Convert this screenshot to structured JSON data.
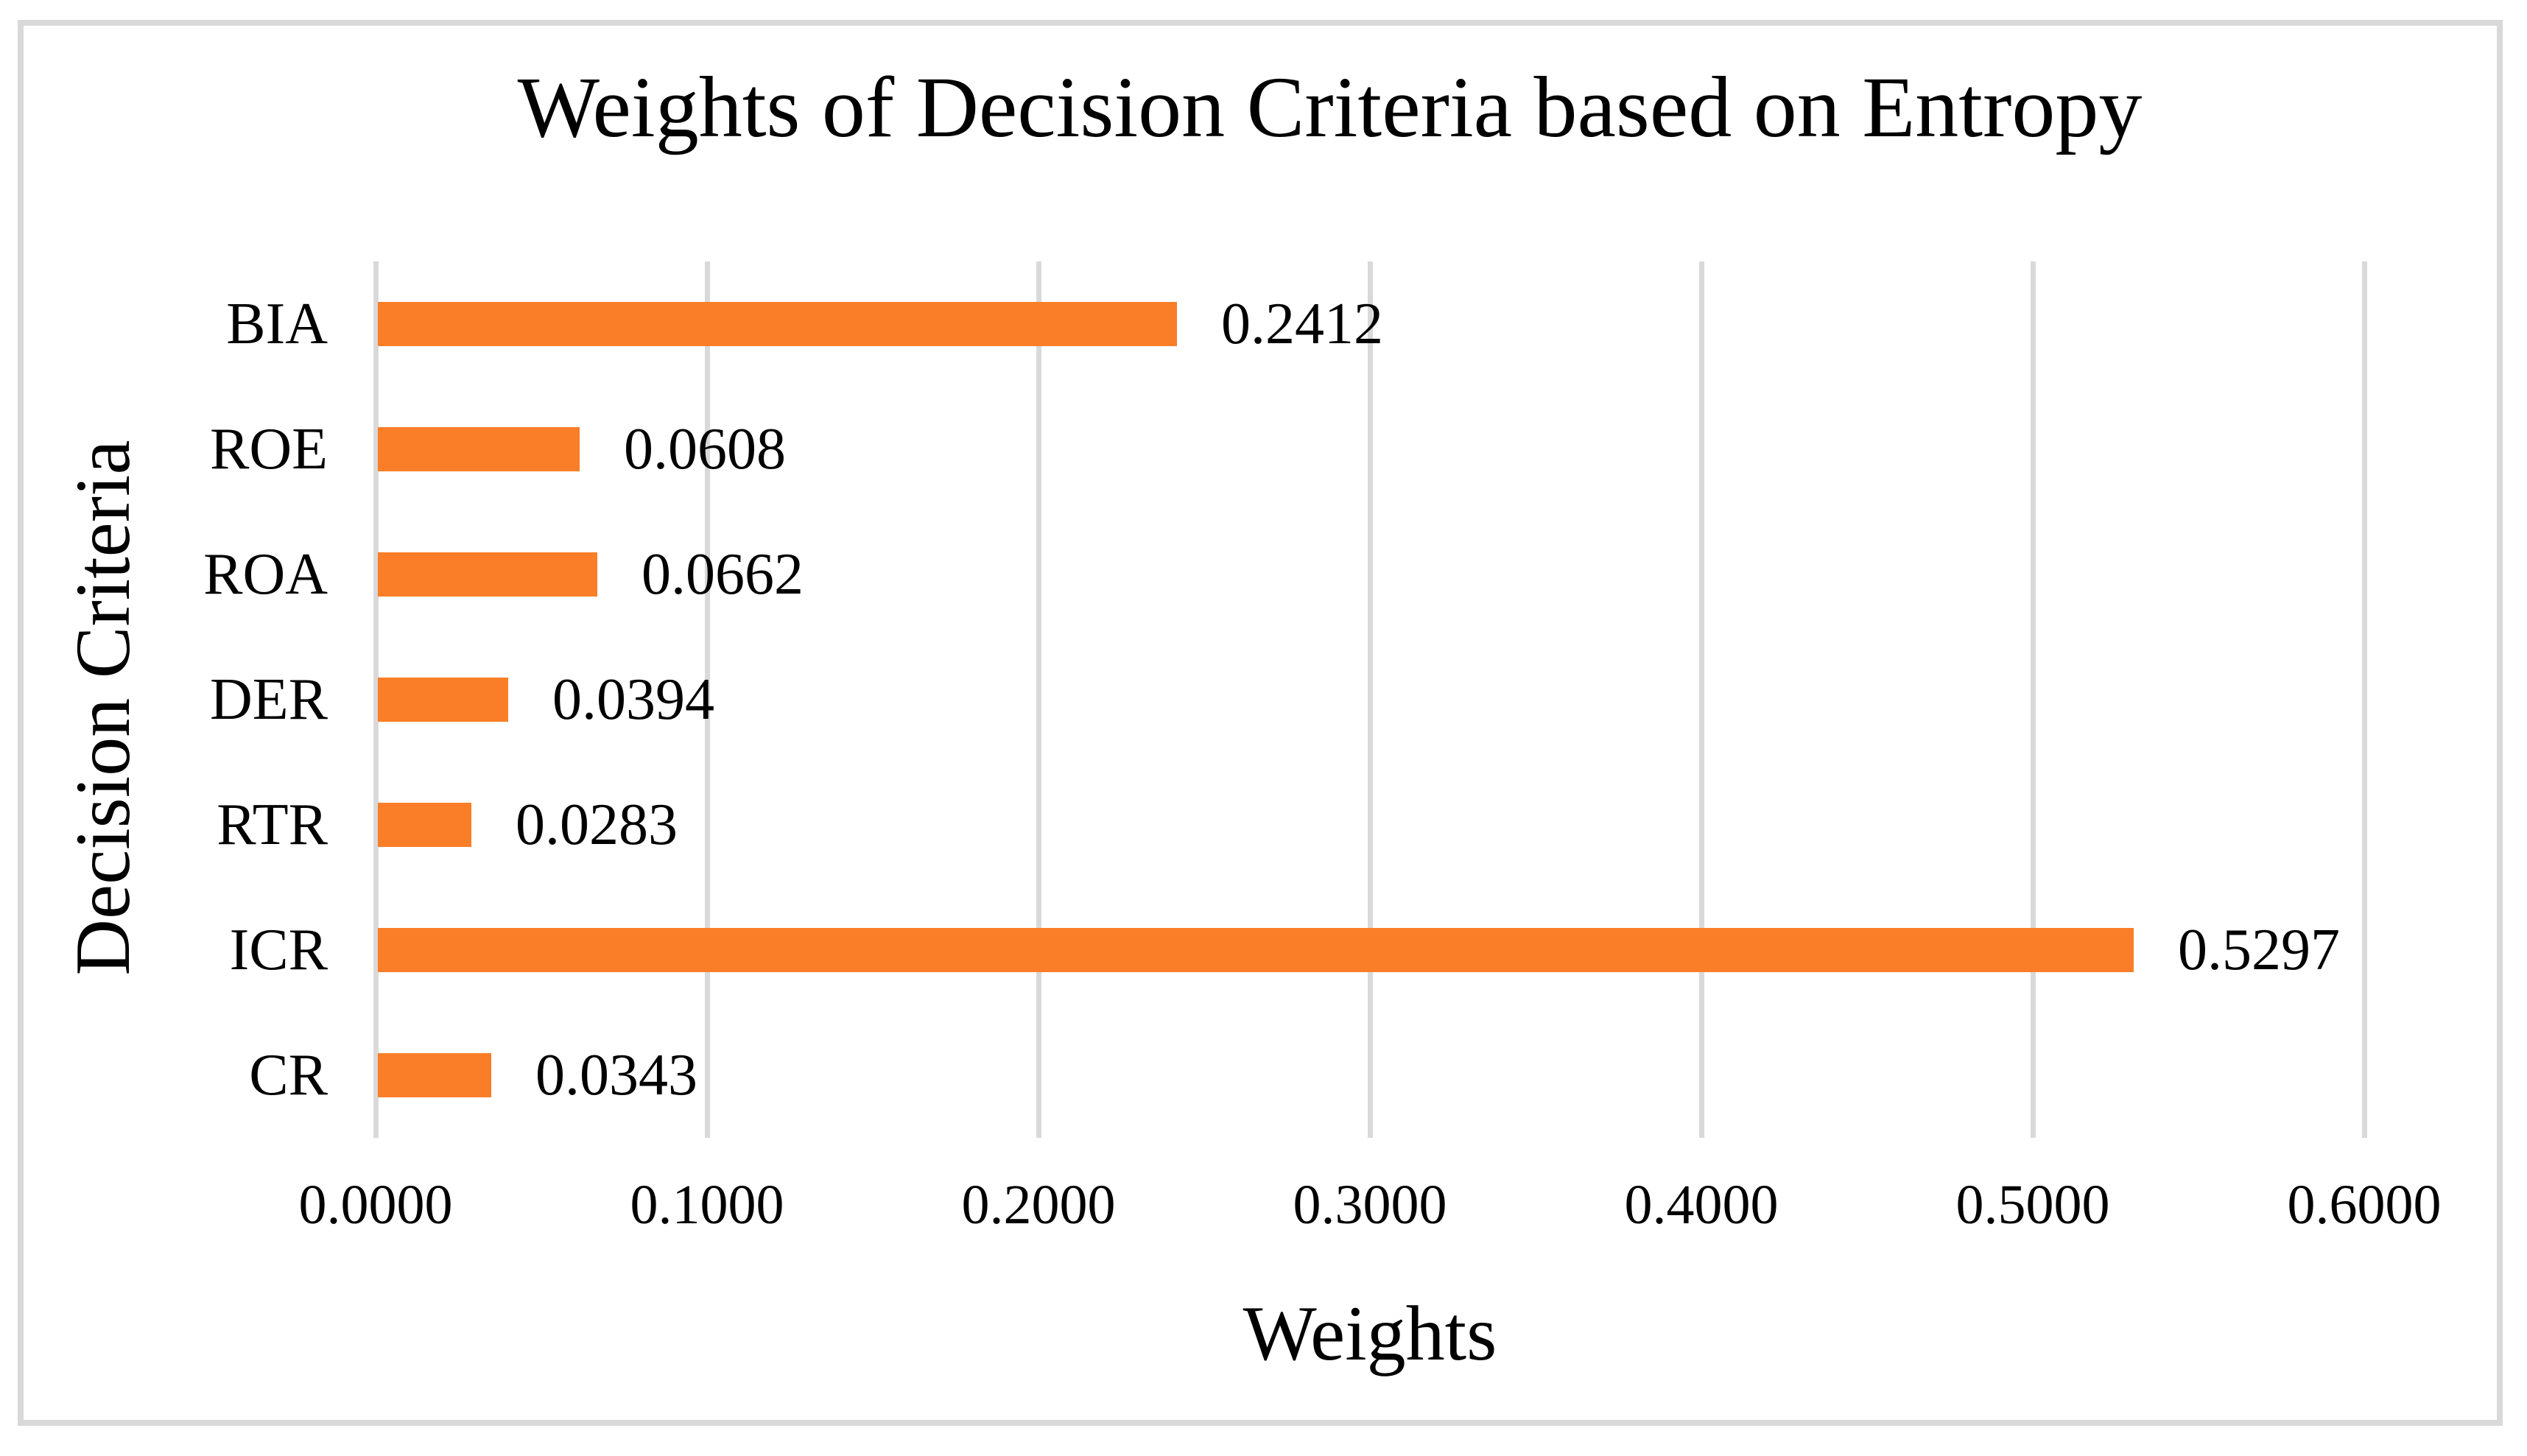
{
  "chart_data": {
    "type": "bar",
    "orientation": "horizontal",
    "title": "Weights of Decision Criteria based on Entropy",
    "xlabel": "Weights",
    "ylabel": "Decision Criteria",
    "categories": [
      "BIA",
      "ROE",
      "ROA",
      "DER",
      "RTR",
      "ICR",
      "CR"
    ],
    "values": [
      0.2412,
      0.0608,
      0.0662,
      0.0394,
      0.0283,
      0.5297,
      0.0343
    ],
    "value_labels": [
      "0.2412",
      "0.0608",
      "0.0662",
      "0.0394",
      "0.0283",
      "0.5297",
      "0.0343"
    ],
    "x_ticks": [
      "0.0000",
      "0.1000",
      "0.2000",
      "0.3000",
      "0.4000",
      "0.5000",
      "0.6000"
    ],
    "xlim": [
      0,
      0.6
    ],
    "grid": "vertical-gridlines",
    "legend": "none",
    "bar_color": "#F97E27",
    "gridline_color": "#D9D9D9",
    "border_color": "#D9D9D9",
    "text_color": "#000000"
  }
}
